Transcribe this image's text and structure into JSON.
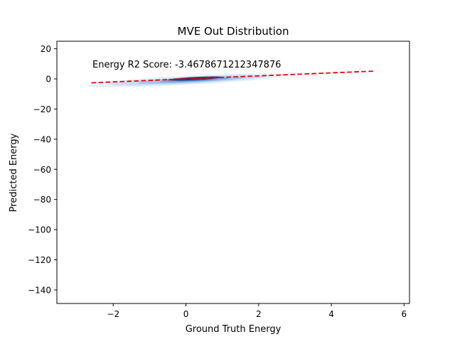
{
  "chart_data": {
    "type": "scatter",
    "title": "MVE Out Distribution",
    "xlabel": "Ground Truth Energy",
    "ylabel": "Predicted Energy",
    "xlim": [
      -3.55,
      6.15
    ],
    "ylim": [
      -149,
      25
    ],
    "xticks": [
      -2,
      0,
      2,
      4,
      6
    ],
    "yticks": [
      20,
      0,
      -20,
      -40,
      -60,
      -80,
      -100,
      -120,
      -140
    ],
    "annotation": "Energy R2 Score: -3.4678671212347876",
    "reference_line": {
      "style": "dashed",
      "color": "#e8000b",
      "x": [
        -2.6,
        5.2
      ],
      "y": [
        -2.6,
        5.2
      ]
    },
    "density": {
      "color": "#1f6fd1",
      "x_range": [
        -2.0,
        3.5
      ],
      "y_range": [
        -3.0,
        3.0
      ],
      "core_x": [
        -0.5,
        1.0
      ],
      "core_y": [
        -0.5,
        1.0
      ]
    },
    "grid": false,
    "legend": "none"
  }
}
